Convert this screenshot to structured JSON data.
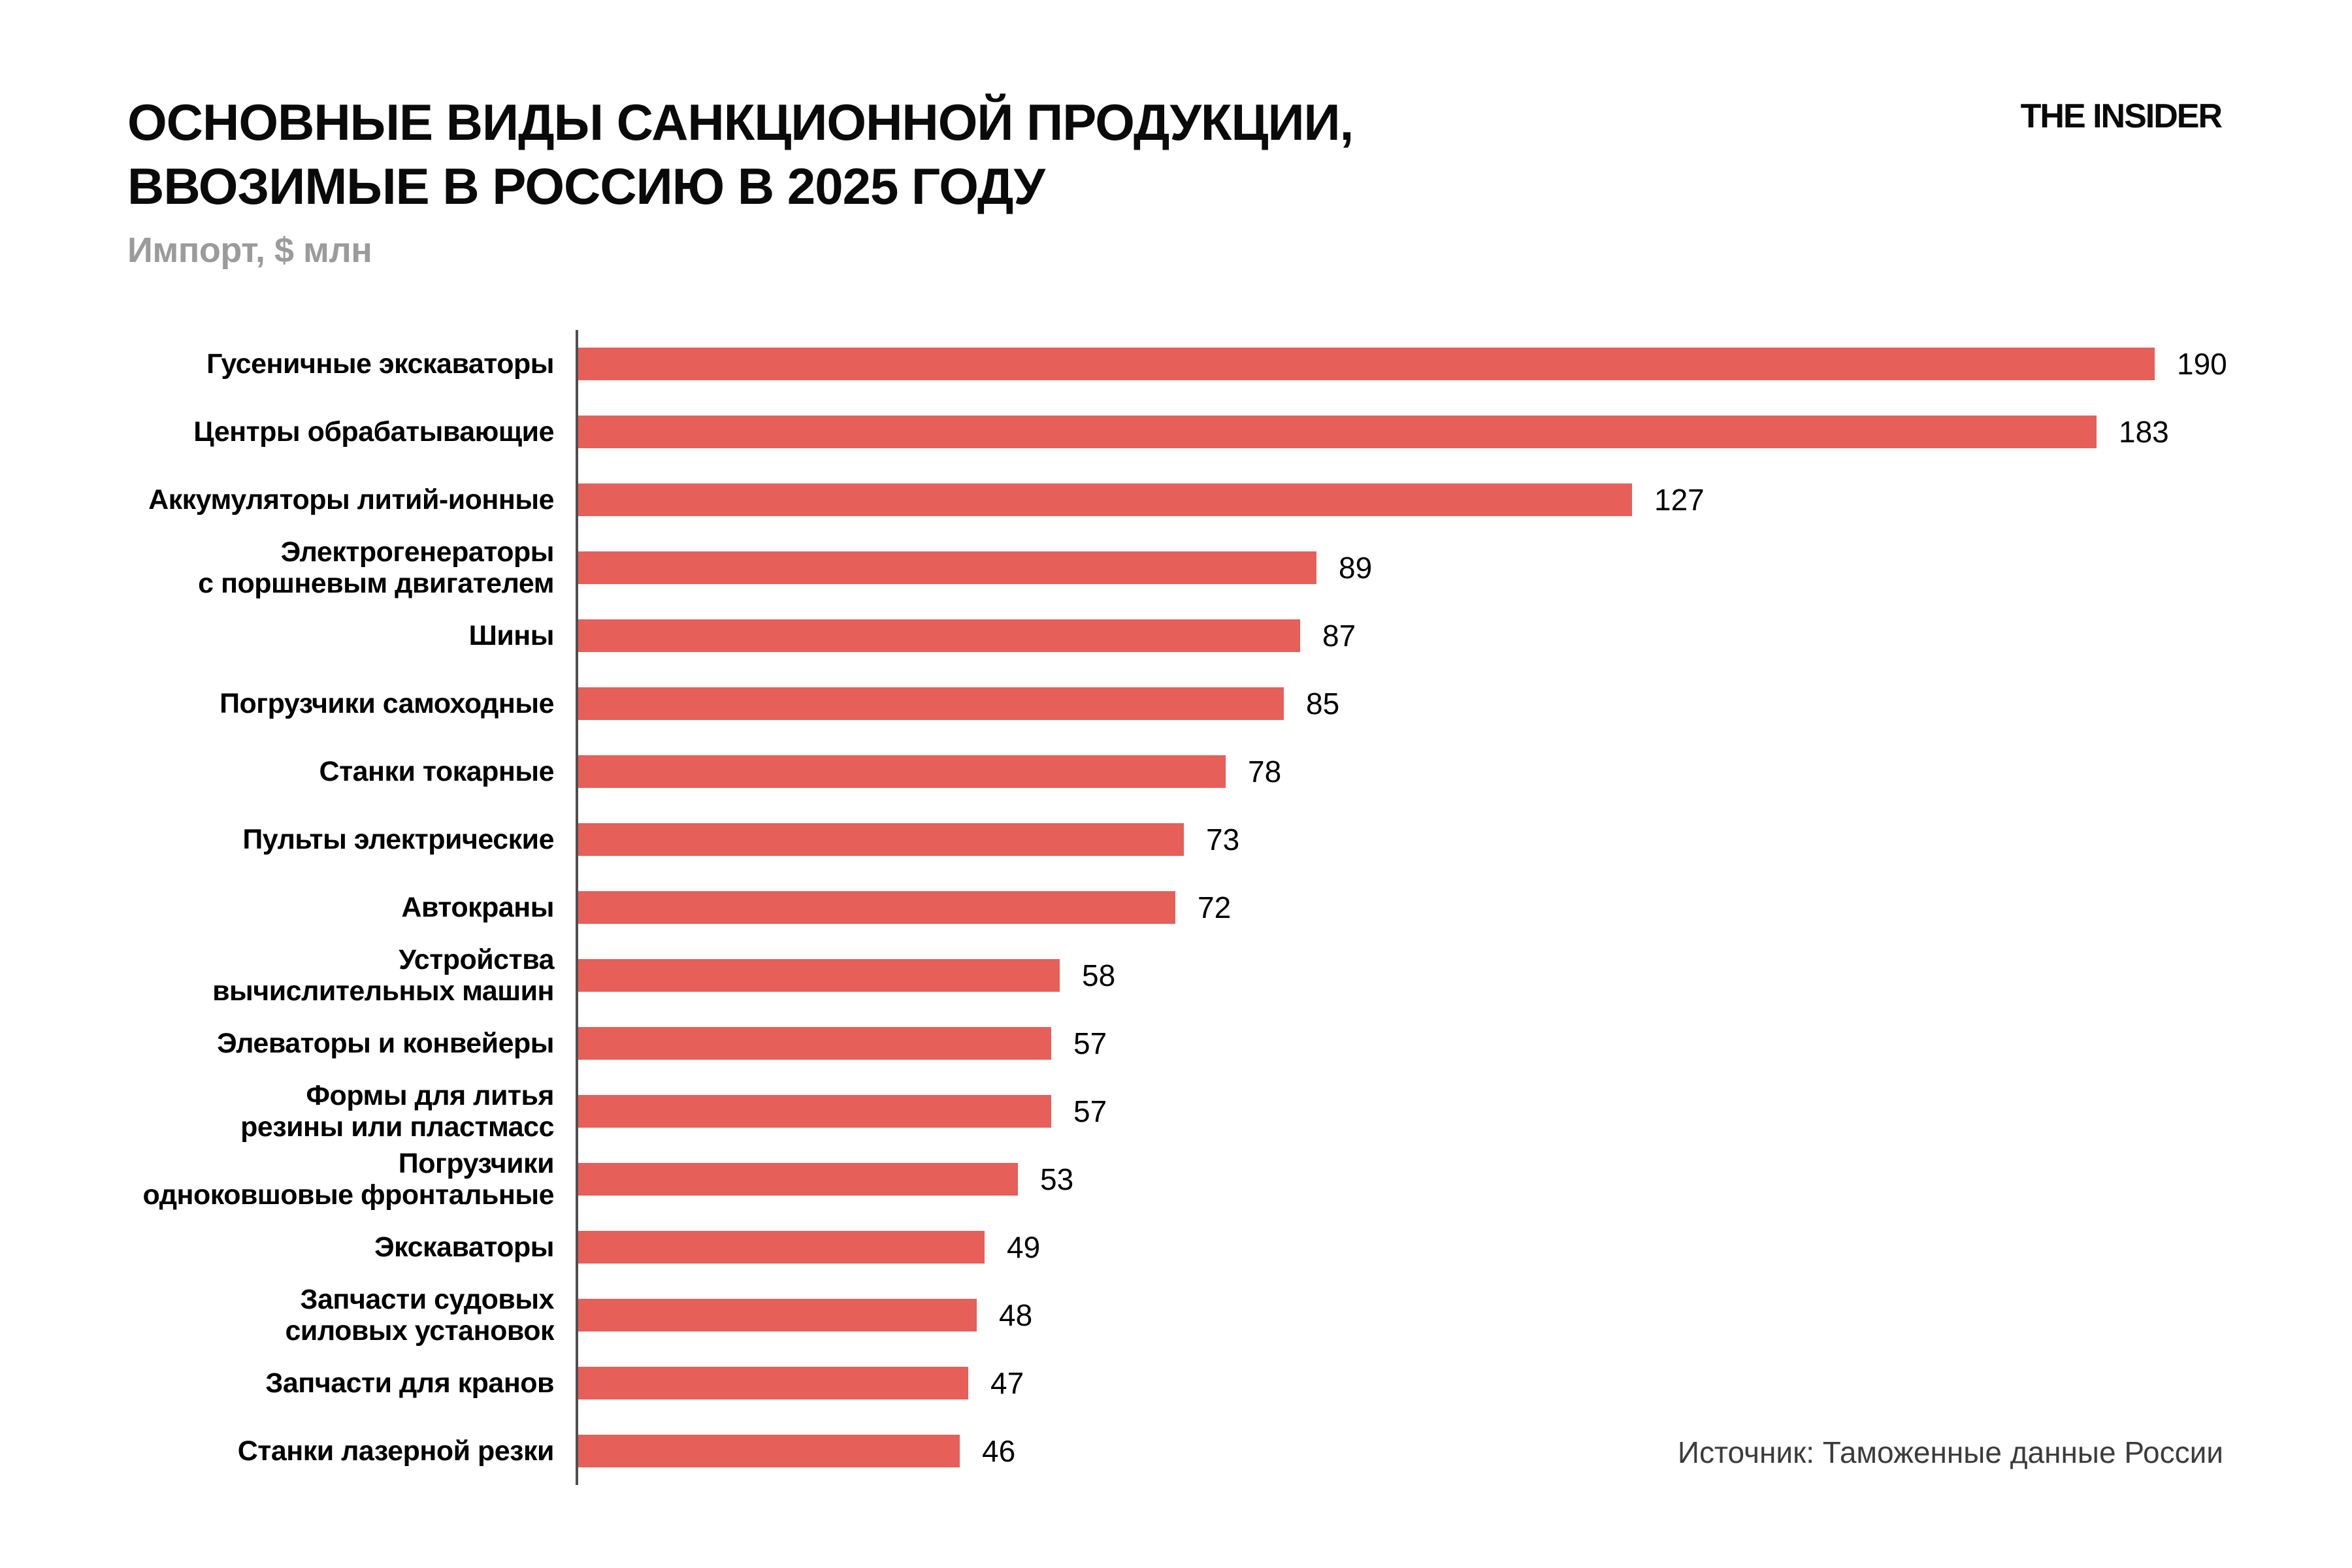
{
  "header": {
    "title": "ОСНОВНЫЕ ВИДЫ САНКЦИОННОЙ ПРОДУКЦИИ,\nВВОЗИМЫЕ В РОССИЮ В 2025 ГОДУ",
    "subtitle": "Импорт, $ млн",
    "brand": "THE INSIDER"
  },
  "footer": {
    "source": "Источник: Таможенные данные России"
  },
  "chart_data": {
    "type": "bar",
    "orientation": "horizontal",
    "title": "ОСНОВНЫЕ ВИДЫ САНКЦИОННОЙ ПРОДУКЦИИ, ВВОЗИМЫЕ В РОССИЮ В 2025 ГОДУ",
    "subtitle": "Импорт, $ млн",
    "xlabel": "Импорт, $ млн",
    "ylabel": "",
    "xlim": [
      0,
      214
    ],
    "grid": false,
    "legend": "none",
    "bar_color": "#e65f58",
    "axis_line_color": "#4f4f4f",
    "categories": [
      "Гусеничные экскаваторы",
      "Центры обрабатывающие",
      "Аккумуляторы литий-ионные",
      "Электрогенераторы\nс поршневым двигателем",
      "Шины",
      "Погрузчики самоходные",
      "Станки токарные",
      "Пульты электрические",
      "Автокраны",
      "Устройства\nвычислительных машин",
      "Элеваторы и конвейеры",
      "Формы для литья\nрезины или пластмасс",
      "Погрузчики\nодноковшовые фронтальные",
      "Экскаваторы",
      "Запчасти судовых\nсиловых установок",
      "Запчасти для кранов",
      "Станки лазерной резки"
    ],
    "values": [
      190,
      183,
      127,
      89,
      87,
      85,
      78,
      73,
      72,
      58,
      57,
      57,
      53,
      49,
      48,
      47,
      46
    ]
  }
}
